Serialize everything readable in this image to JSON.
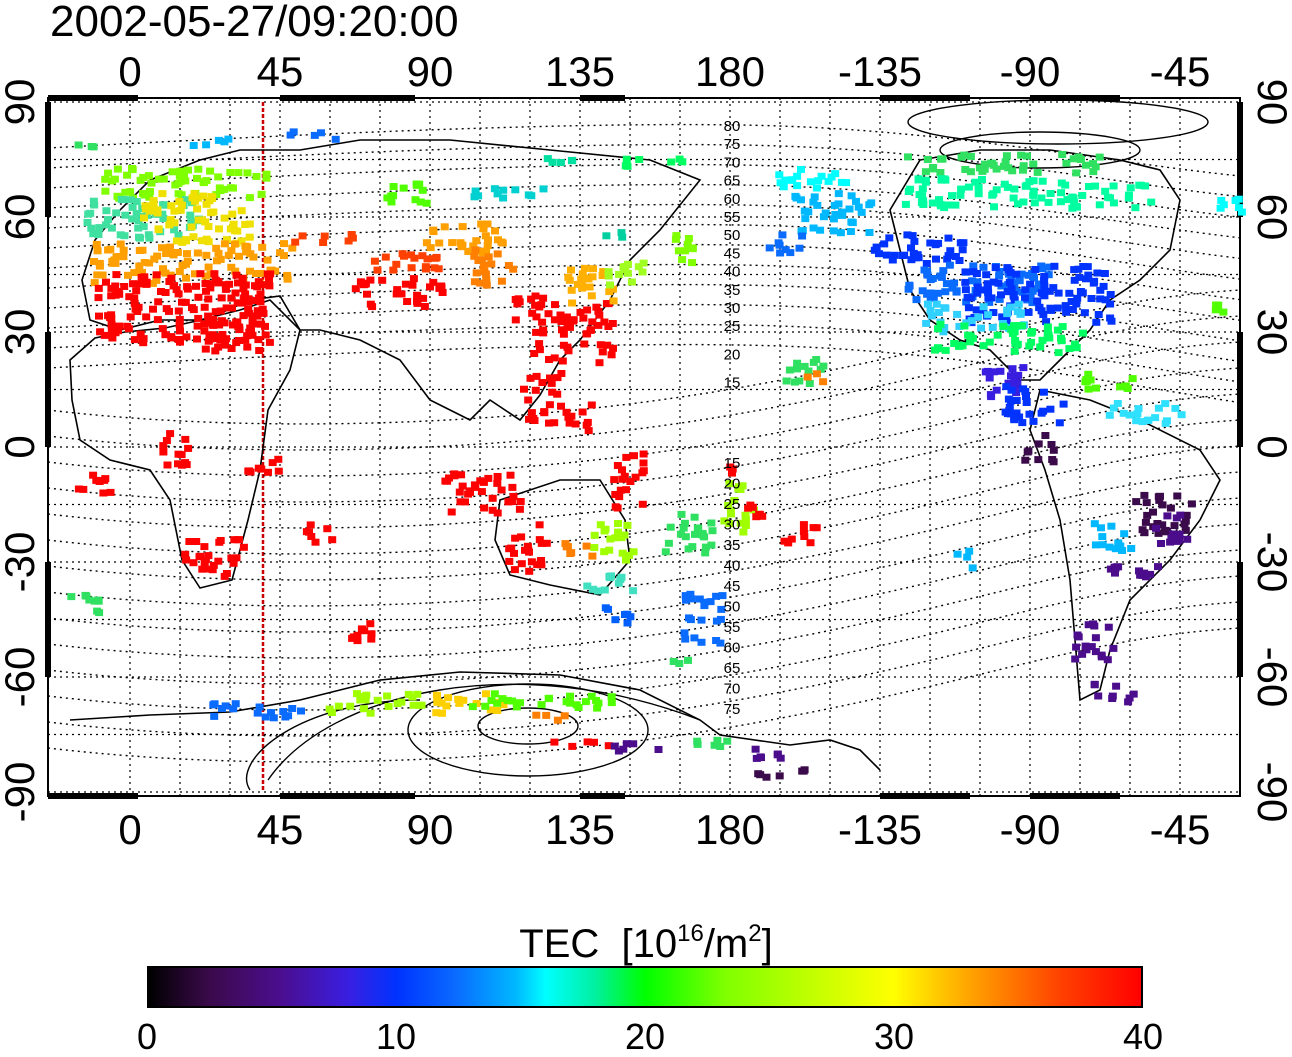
{
  "timestamp": "2002-05-27/09:20:00",
  "top_lon_labels": [
    "0",
    "45",
    "90",
    "135",
    "180",
    "-135",
    "-90",
    "-45"
  ],
  "bottom_lon_labels": [
    "0",
    "45",
    "90",
    "135",
    "180",
    "-135",
    "-90",
    "-45"
  ],
  "left_lat_labels": [
    "90",
    "60",
    "30",
    "0",
    "-30",
    "-60",
    "-90"
  ],
  "right_lat_labels": [
    "90",
    "60",
    "30",
    "0",
    "-30",
    "-60",
    "-90"
  ],
  "contour_labels_north": [
    "80",
    "75",
    "70",
    "65",
    "60",
    "55",
    "50",
    "45",
    "40",
    "35",
    "30",
    "25",
    "20",
    "15"
  ],
  "contour_labels_south": [
    "15",
    "20",
    "25",
    "30",
    "35",
    "40",
    "45",
    "50",
    "55",
    "60",
    "65",
    "70",
    "75"
  ],
  "colorbar": {
    "title": "TEC",
    "units_prefix": "[10",
    "units_exp": "16",
    "units_mid": "/m",
    "units_exp2": "2",
    "units_suffix": "]",
    "tick_labels": [
      "0",
      "10",
      "20",
      "30",
      "40"
    ],
    "min": 0,
    "max": 40
  },
  "colors": {
    "high": "#ff0000",
    "mid": "#00ff00",
    "low": "#0033ff",
    "marker": "#cc0000"
  }
}
